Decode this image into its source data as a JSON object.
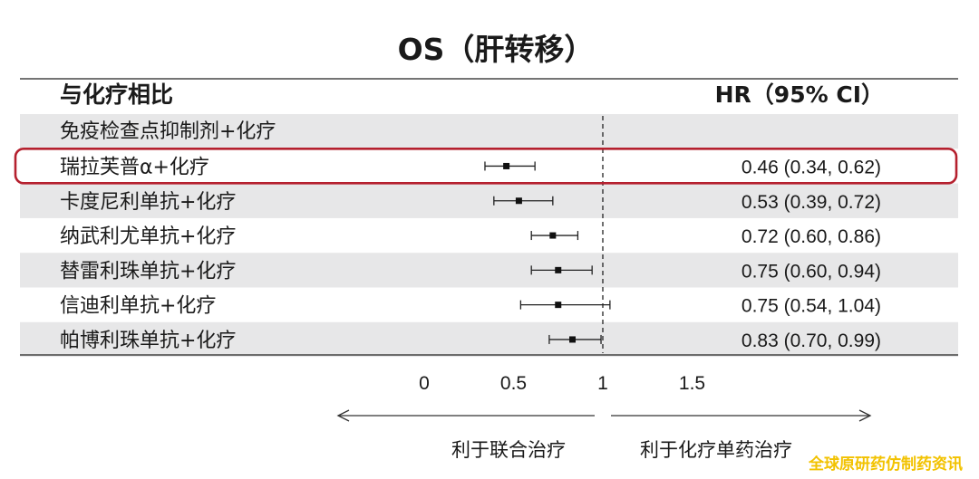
{
  "chart_data": {
    "type": "forest",
    "title": "OS（肝转移）",
    "column_headers": {
      "comparison": "与化疗相比",
      "hr": "HR（95% CI）"
    },
    "group_label": "免疫检查点抑制剂+化疗",
    "rows": [
      {
        "label": "瑞拉芙普α+化疗",
        "hr": 0.46,
        "lo": 0.34,
        "hi": 0.62,
        "hr_text": "0.46 (0.34, 0.62)",
        "highlight": true
      },
      {
        "label": "卡度尼利单抗+化疗",
        "hr": 0.53,
        "lo": 0.39,
        "hi": 0.72,
        "hr_text": "0.53 (0.39, 0.72)",
        "highlight": false
      },
      {
        "label": "纳武利尤单抗+化疗",
        "hr": 0.72,
        "lo": 0.6,
        "hi": 0.86,
        "hr_text": "0.72 (0.60, 0.86)",
        "highlight": false
      },
      {
        "label": "替雷利珠单抗+化疗",
        "hr": 0.75,
        "lo": 0.6,
        "hi": 0.94,
        "hr_text": "0.75 (0.60, 0.94)",
        "highlight": false
      },
      {
        "label": "信迪利单抗+化疗",
        "hr": 0.75,
        "lo": 0.54,
        "hi": 1.04,
        "hr_text": "0.75 (0.54, 1.04)",
        "highlight": false
      },
      {
        "label": "帕博利珠单抗+化疗",
        "hr": 0.83,
        "lo": 0.7,
        "hi": 0.99,
        "hr_text": "0.83 (0.70, 0.99)",
        "highlight": false
      }
    ],
    "x_ticks": [
      "0",
      "0.5",
      "1",
      "1.5"
    ],
    "x_tick_values": [
      0,
      0.5,
      1,
      1.5
    ],
    "xlim": [
      0,
      1.5
    ],
    "reference_line": 1,
    "favors_left": "利于联合治疗",
    "favors_right": "利于化疗单药治疗",
    "highlight_color": "#b5202e",
    "stripe_color": "#e7e7e8"
  },
  "watermark": "全球原研药仿制药资讯",
  "watermark_color": "#f2c200"
}
